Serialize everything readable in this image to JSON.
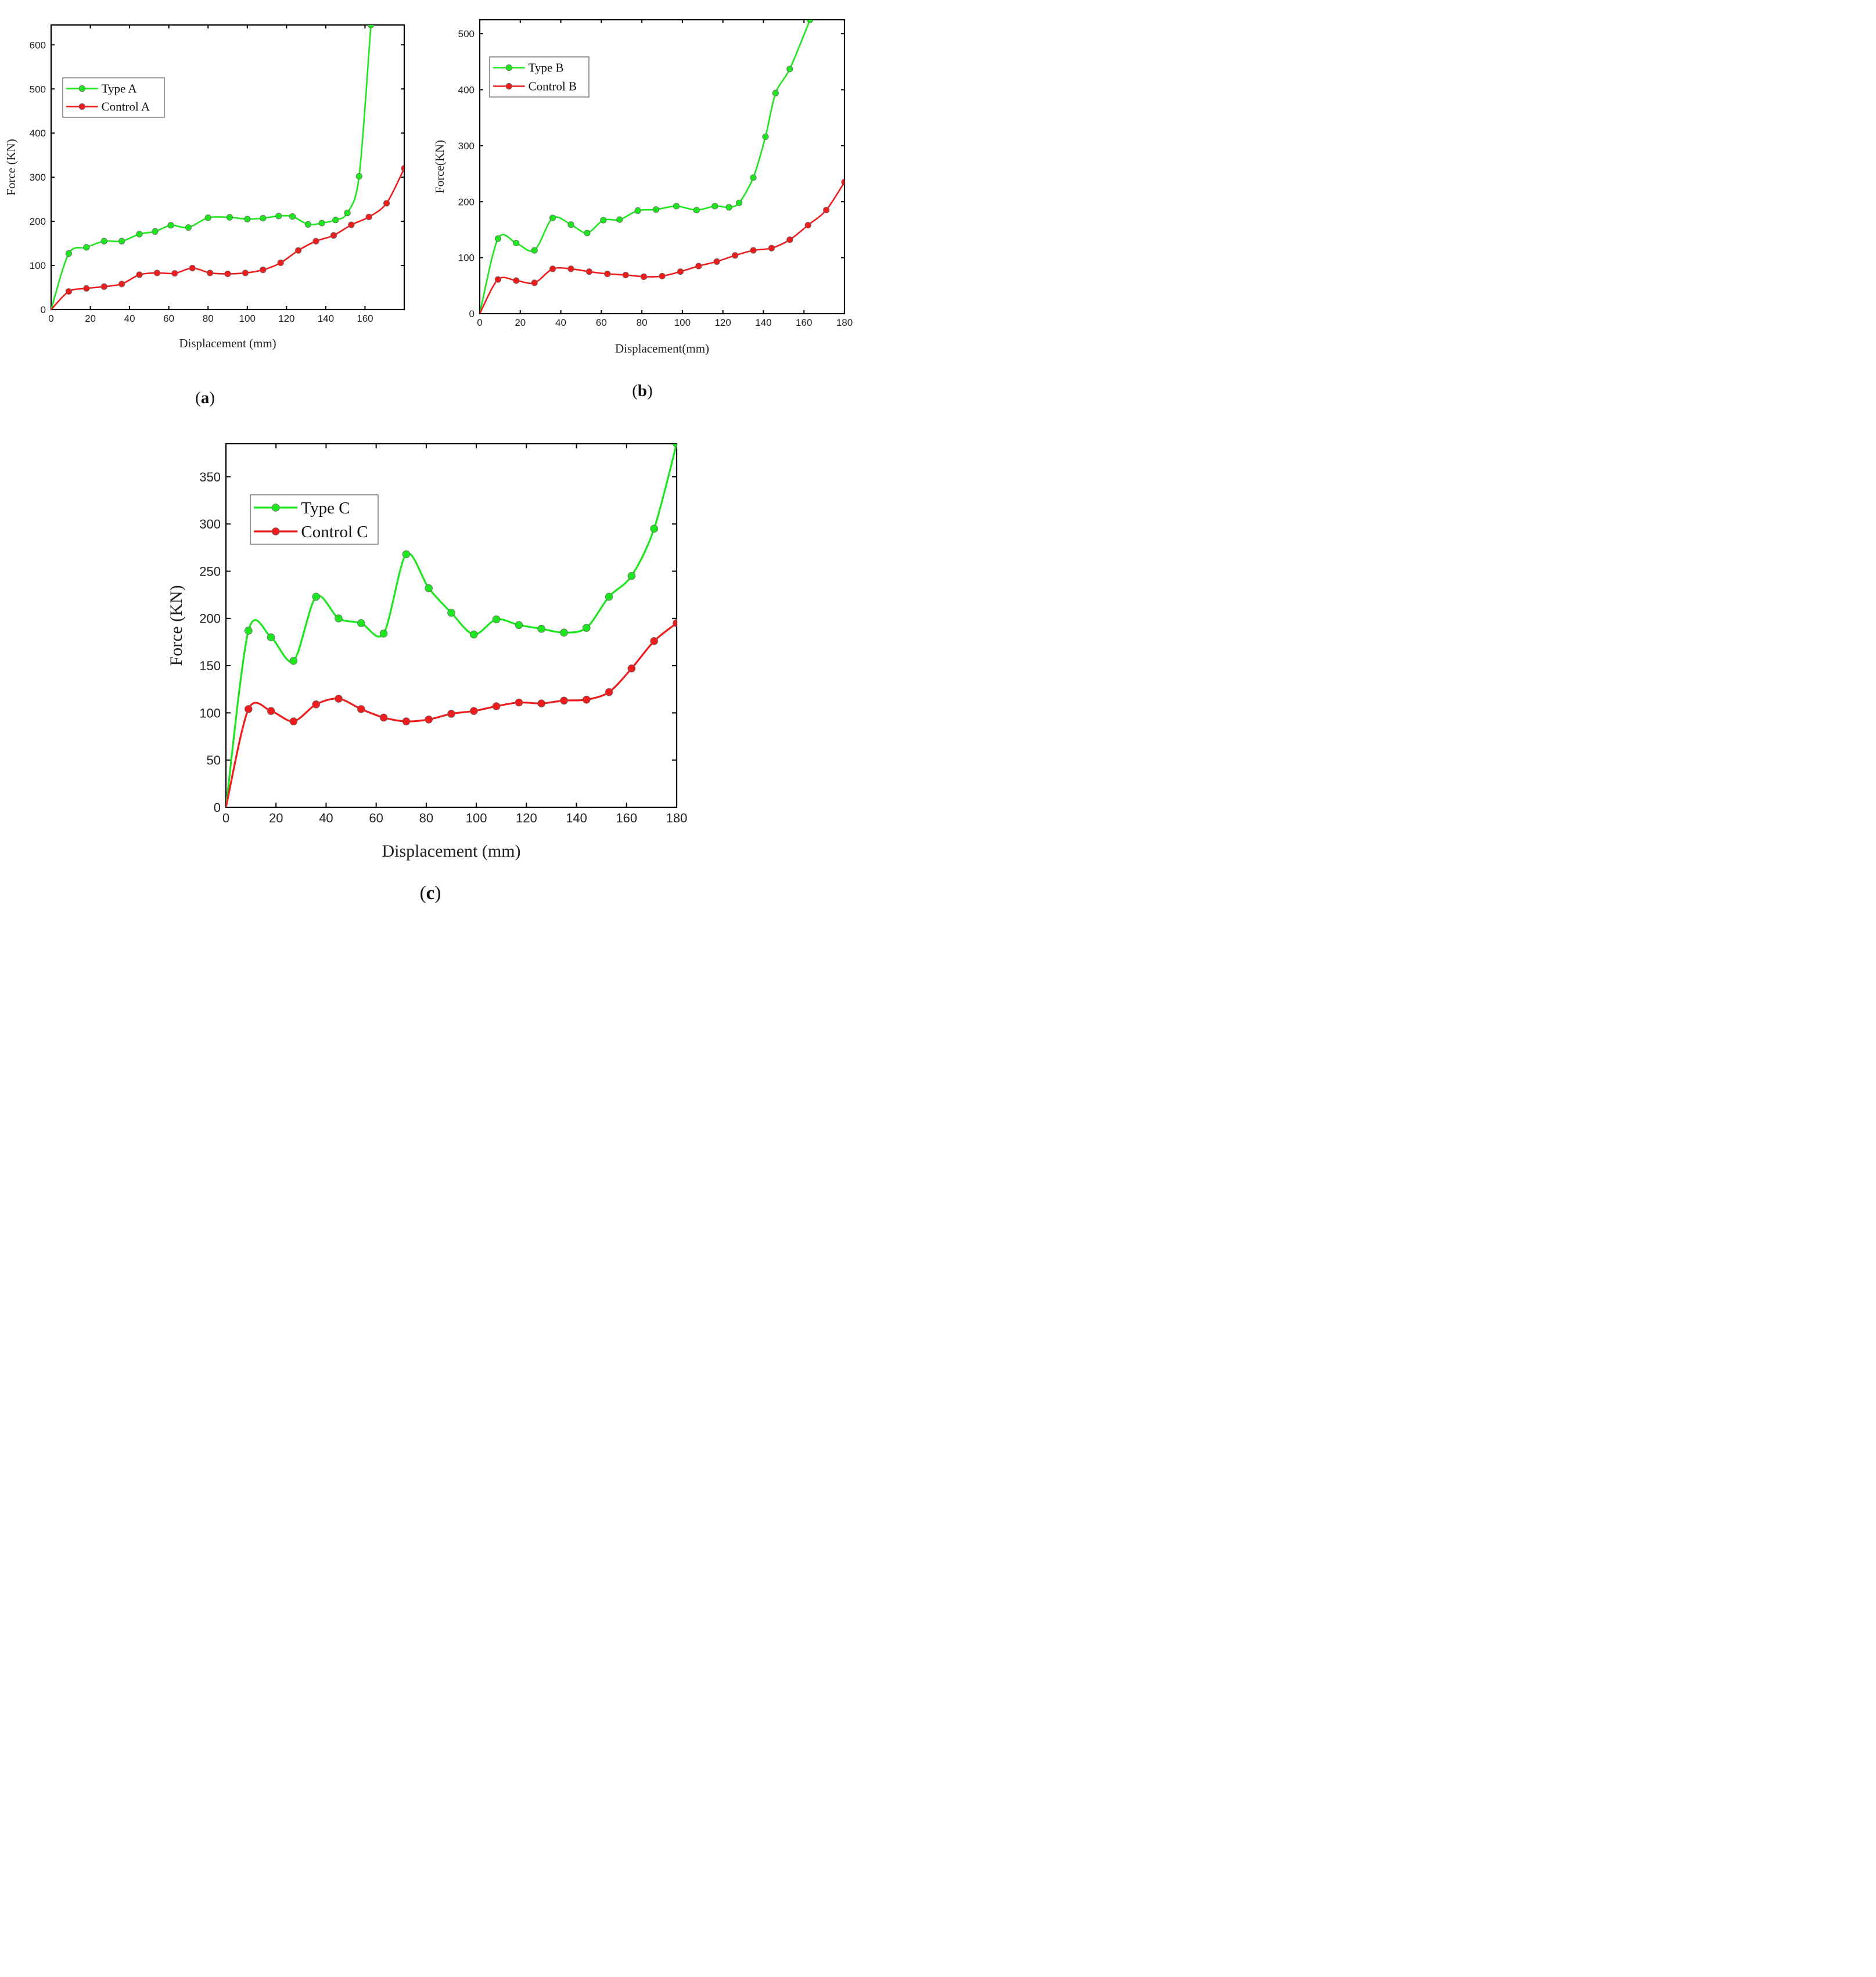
{
  "colors": {
    "type": "#1ee61e",
    "control": "#ee1c1c",
    "axis": "#000000"
  },
  "chart_data": [
    {
      "panel": "(a)",
      "panel_letter": "a",
      "type": "line",
      "xlabel": "Displacement (mm)",
      "ylabel": "Force (KN)",
      "xlim": [
        0,
        180
      ],
      "ylim": [
        0,
        645
      ],
      "xticks": [
        0,
        20,
        40,
        60,
        80,
        100,
        120,
        140,
        160
      ],
      "yticks": [
        0,
        100,
        200,
        300,
        400,
        500,
        600
      ],
      "grid": false,
      "legend_position": "upper-left",
      "series": [
        {
          "name": "Type A",
          "color_key": "type",
          "x": [
            0,
            9,
            18,
            27,
            36,
            45,
            53,
            61,
            70,
            80,
            91,
            100,
            108,
            116,
            123,
            131,
            138,
            145,
            151,
            157,
            163
          ],
          "y": [
            0,
            127,
            141,
            155,
            155,
            171,
            177,
            191,
            186,
            208,
            209,
            205,
            207,
            212,
            211,
            193,
            196,
            203,
            219,
            302,
            645
          ]
        },
        {
          "name": "Control A",
          "color_key": "control",
          "x": [
            0,
            9,
            18,
            27,
            36,
            45,
            54,
            63,
            72,
            81,
            90,
            99,
            108,
            117,
            126,
            135,
            144,
            153,
            162,
            171,
            180
          ],
          "y": [
            0,
            41,
            48,
            52,
            58,
            79,
            83,
            82,
            94,
            83,
            81,
            83,
            90,
            106,
            134,
            155,
            168,
            192,
            210,
            241,
            320
          ]
        }
      ]
    },
    {
      "panel": "(b)",
      "panel_letter": "b",
      "type": "line",
      "xlabel": "Displacement(mm)",
      "ylabel": "Force(KN)",
      "xlim": [
        0,
        180
      ],
      "ylim": [
        0,
        525
      ],
      "xticks": [
        0,
        20,
        40,
        60,
        80,
        100,
        120,
        140,
        160,
        180
      ],
      "yticks": [
        0,
        100,
        200,
        300,
        400,
        500
      ],
      "grid": false,
      "legend_position": "upper-left",
      "series": [
        {
          "name": "Type B",
          "color_key": "type",
          "x": [
            0,
            9,
            18,
            27,
            36,
            45,
            53,
            61,
            69,
            78,
            87,
            97,
            107,
            116,
            123,
            128,
            135,
            141,
            146,
            153,
            163
          ],
          "y": [
            0,
            134,
            126,
            113,
            171,
            159,
            144,
            167,
            168,
            184,
            186,
            192,
            185,
            192,
            190,
            198,
            243,
            316,
            394,
            437,
            525
          ]
        },
        {
          "name": "Control B",
          "color_key": "control",
          "x": [
            0,
            9,
            18,
            27,
            36,
            45,
            54,
            63,
            72,
            81,
            90,
            99,
            108,
            117,
            126,
            135,
            144,
            153,
            162,
            171,
            180
          ],
          "y": [
            0,
            61,
            59,
            55,
            80,
            80,
            75,
            71,
            69,
            66,
            67,
            75,
            85,
            93,
            104,
            113,
            117,
            132,
            158,
            185,
            235
          ]
        }
      ]
    },
    {
      "panel": "(c)",
      "panel_letter": "c",
      "type": "line",
      "xlabel": "Displacement (mm)",
      "ylabel": "Force (KN)",
      "xlim": [
        0,
        180
      ],
      "ylim": [
        0,
        385
      ],
      "xticks": [
        0,
        20,
        40,
        60,
        80,
        100,
        120,
        140,
        160,
        180
      ],
      "yticks": [
        0,
        50,
        100,
        150,
        200,
        250,
        300,
        350
      ],
      "grid": false,
      "legend_position": "upper-left",
      "series": [
        {
          "name": "Type C",
          "color_key": "type",
          "x": [
            0,
            9,
            18,
            27,
            36,
            45,
            54,
            63,
            72,
            81,
            90,
            99,
            108,
            117,
            126,
            135,
            144,
            153,
            162,
            171,
            180
          ],
          "y": [
            0,
            187,
            180,
            155,
            223,
            200,
            195,
            184,
            268,
            232,
            206,
            183,
            199,
            193,
            189,
            185,
            190,
            223,
            245,
            295,
            385
          ]
        },
        {
          "name": "Control C",
          "color_key": "control",
          "x": [
            0,
            9,
            18,
            27,
            36,
            45,
            54,
            63,
            72,
            81,
            90,
            99,
            108,
            117,
            126,
            135,
            144,
            153,
            162,
            171,
            180
          ],
          "y": [
            0,
            104,
            102,
            91,
            109,
            115,
            104,
            95,
            91,
            93,
            99,
            102,
            107,
            111,
            110,
            113,
            114,
            122,
            147,
            176,
            195
          ]
        }
      ]
    }
  ]
}
